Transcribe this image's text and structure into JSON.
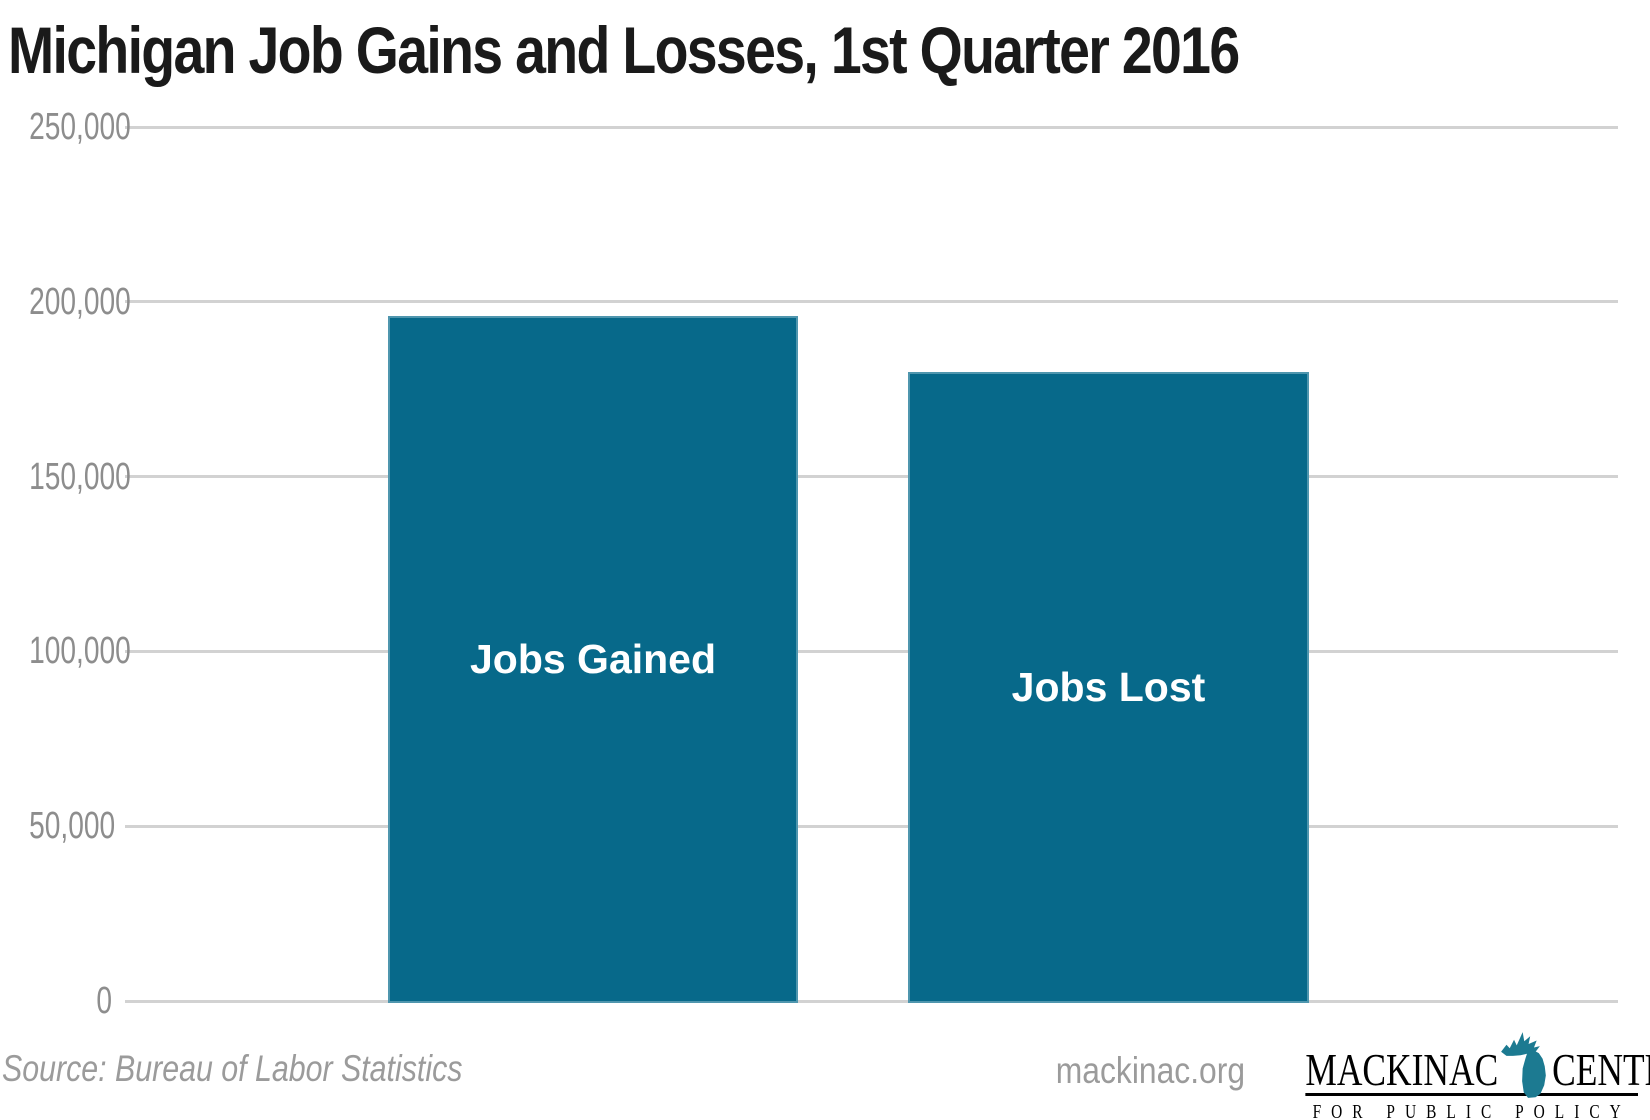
{
  "header": {
    "title": "Michigan Job Gains and Losses, 1st Quarter 2016"
  },
  "chart_data": {
    "type": "bar",
    "title": "Michigan Job Gains and Losses, 1st Quarter 2016",
    "categories": [
      "Jobs Gained",
      "Jobs Lost"
    ],
    "values": [
      196000,
      180000
    ],
    "xlabel": "",
    "ylabel": "",
    "ylim": [
      0,
      250000
    ],
    "ytick_values": [
      250000,
      200000,
      150000,
      100000,
      50000,
      0
    ],
    "ytick_labels": [
      "250,000",
      "200,000",
      "150,000",
      "100,000",
      "50,000",
      "0"
    ],
    "grid": true,
    "legend_position": "none",
    "bar_labels_inside": true
  },
  "colors": {
    "bar": "#07698a",
    "bar_label": "#ffffff",
    "gridline": "#d2d2d2",
    "axis_label": "#8d8d8d",
    "title_text": "#1a1a1a",
    "footer_text": "#9b9b9b",
    "logo_michigan": "#1c7a91",
    "logo_text": "#000000"
  },
  "footer": {
    "source": "Source: Bureau of Labor Statistics",
    "website": "mackinac.org",
    "logo": {
      "word_left": "MACKINAC",
      "word_right": "CENTER",
      "tagline": "FOR PUBLIC POLICY"
    }
  }
}
